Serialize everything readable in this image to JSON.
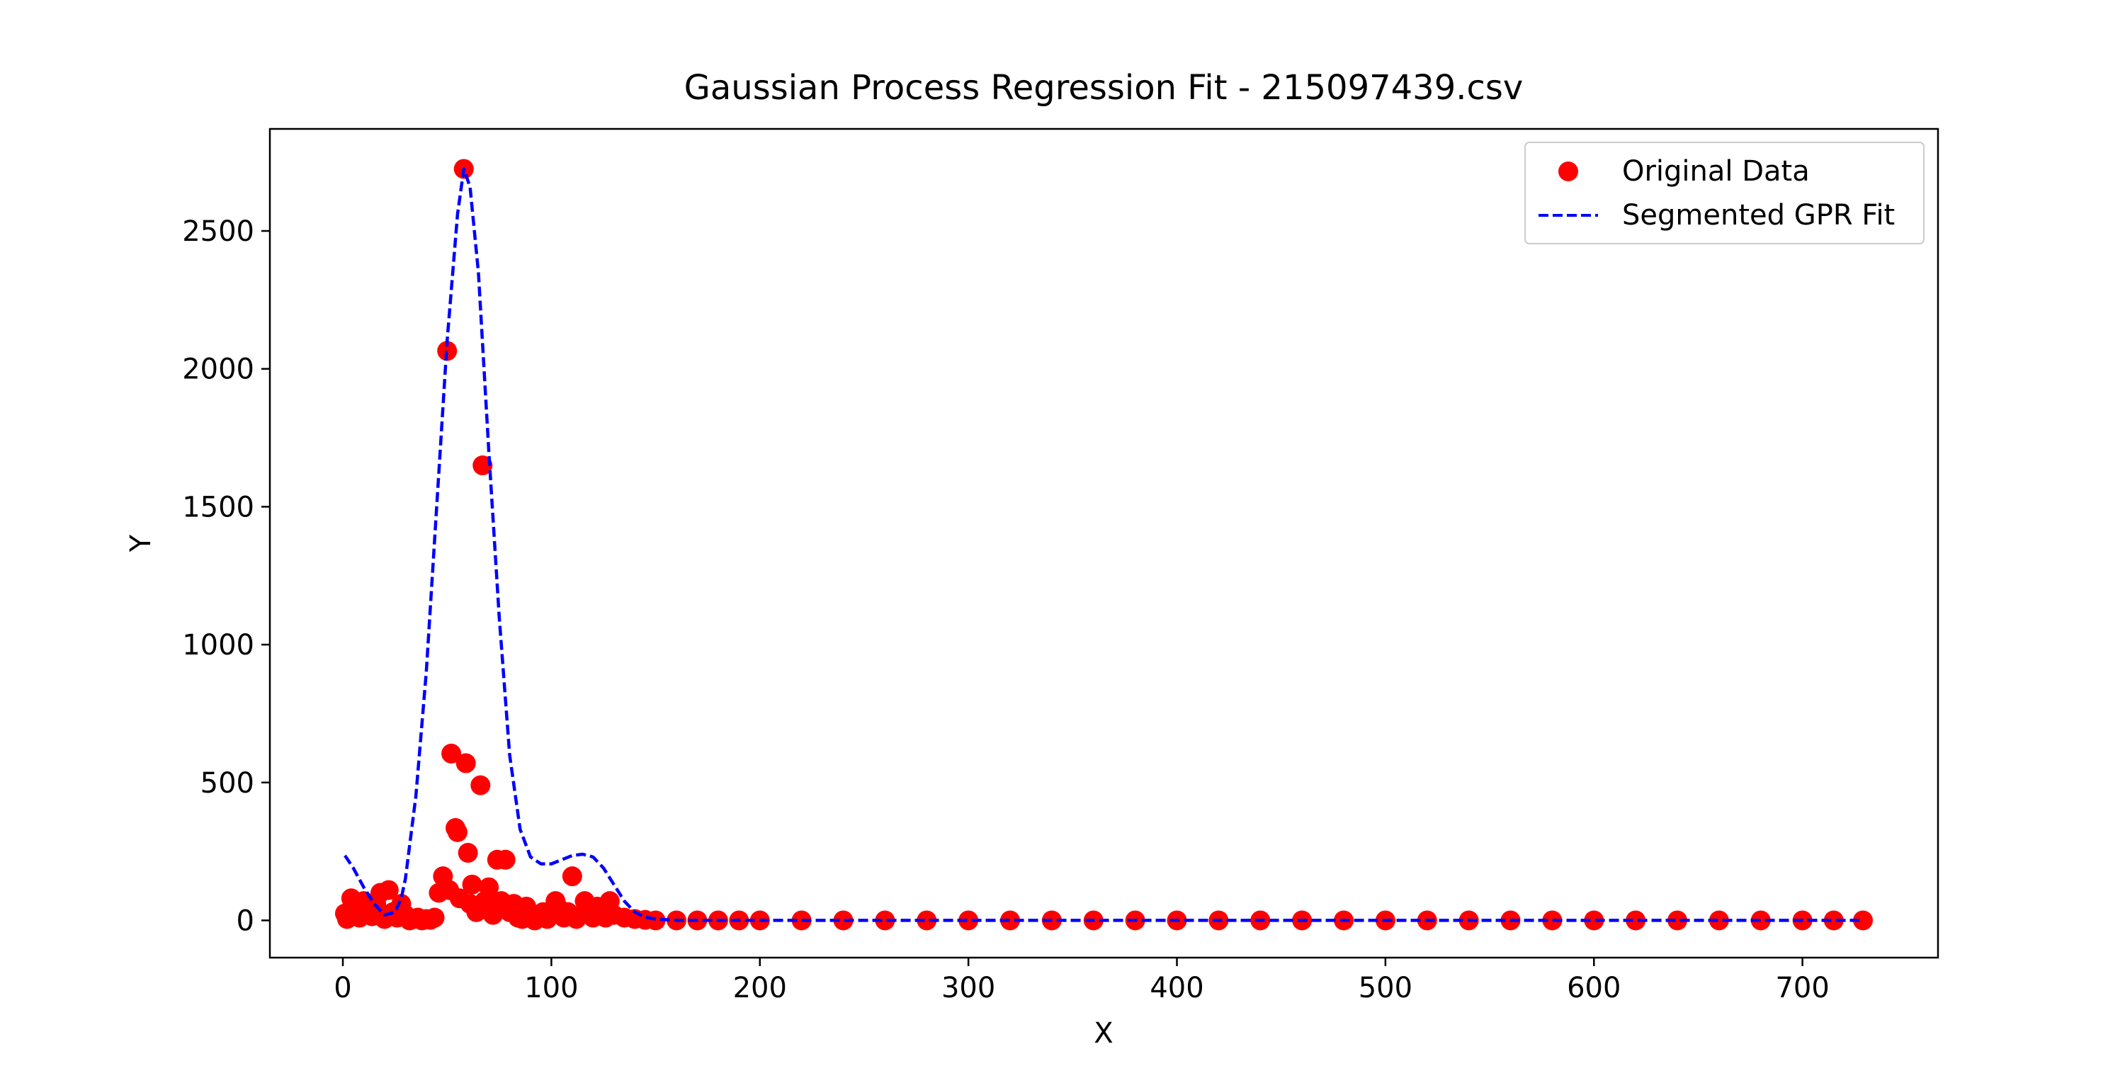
{
  "chart_data": {
    "type": "scatter",
    "title": "Gaussian Process Regression Fit - 215097439.csv",
    "xlabel": "X",
    "ylabel": "Y",
    "xlim": [
      -35,
      765
    ],
    "ylim": [
      -135,
      2870
    ],
    "xticks": [
      0,
      100,
      200,
      300,
      400,
      500,
      600,
      700
    ],
    "yticks": [
      0,
      500,
      1000,
      1500,
      2000,
      2500
    ],
    "grid": false,
    "legend": {
      "placement": "top-right",
      "entries": [
        "Original Data",
        "Segmented GPR Fit"
      ]
    },
    "colors": {
      "scatter": "#ff0000",
      "fit": "#0000ff",
      "axes": "#000000"
    },
    "series": [
      {
        "name": "Original Data",
        "kind": "scatter",
        "points": [
          [
            1,
            25
          ],
          [
            2,
            5
          ],
          [
            4,
            80
          ],
          [
            6,
            30
          ],
          [
            8,
            10
          ],
          [
            10,
            70
          ],
          [
            12,
            40
          ],
          [
            14,
            15
          ],
          [
            16,
            60
          ],
          [
            18,
            100
          ],
          [
            20,
            5
          ],
          [
            22,
            110
          ],
          [
            24,
            30
          ],
          [
            26,
            10
          ],
          [
            28,
            60
          ],
          [
            30,
            20
          ],
          [
            32,
            0
          ],
          [
            34,
            5
          ],
          [
            36,
            10
          ],
          [
            38,
            0
          ],
          [
            40,
            5
          ],
          [
            42,
            2
          ],
          [
            44,
            10
          ],
          [
            46,
            100
          ],
          [
            48,
            160
          ],
          [
            50,
            2065
          ],
          [
            51,
            110
          ],
          [
            52,
            605
          ],
          [
            54,
            335
          ],
          [
            55,
            320
          ],
          [
            56,
            80
          ],
          [
            58,
            2725
          ],
          [
            59,
            570
          ],
          [
            60,
            245
          ],
          [
            61,
            60
          ],
          [
            62,
            130
          ],
          [
            64,
            30
          ],
          [
            66,
            490
          ],
          [
            67,
            1650
          ],
          [
            68,
            70
          ],
          [
            70,
            120
          ],
          [
            72,
            20
          ],
          [
            74,
            220
          ],
          [
            76,
            70
          ],
          [
            78,
            220
          ],
          [
            80,
            30
          ],
          [
            82,
            60
          ],
          [
            84,
            10
          ],
          [
            86,
            5
          ],
          [
            88,
            50
          ],
          [
            90,
            20
          ],
          [
            92,
            0
          ],
          [
            94,
            10
          ],
          [
            96,
            30
          ],
          [
            98,
            5
          ],
          [
            100,
            20
          ],
          [
            102,
            70
          ],
          [
            104,
            40
          ],
          [
            106,
            10
          ],
          [
            108,
            30
          ],
          [
            110,
            160
          ],
          [
            112,
            5
          ],
          [
            114,
            20
          ],
          [
            116,
            70
          ],
          [
            118,
            30
          ],
          [
            120,
            10
          ],
          [
            122,
            50
          ],
          [
            124,
            30
          ],
          [
            126,
            10
          ],
          [
            128,
            70
          ],
          [
            130,
            20
          ],
          [
            135,
            10
          ],
          [
            140,
            5
          ],
          [
            145,
            2
          ],
          [
            150,
            0
          ],
          [
            160,
            0
          ],
          [
            170,
            0
          ],
          [
            180,
            0
          ],
          [
            190,
            0
          ],
          [
            200,
            0
          ],
          [
            220,
            0
          ],
          [
            240,
            0
          ],
          [
            260,
            0
          ],
          [
            280,
            0
          ],
          [
            300,
            0
          ],
          [
            320,
            0
          ],
          [
            340,
            0
          ],
          [
            360,
            0
          ],
          [
            380,
            0
          ],
          [
            400,
            0
          ],
          [
            420,
            0
          ],
          [
            440,
            0
          ],
          [
            460,
            0
          ],
          [
            480,
            0
          ],
          [
            500,
            0
          ],
          [
            520,
            0
          ],
          [
            540,
            0
          ],
          [
            560,
            0
          ],
          [
            580,
            0
          ],
          [
            600,
            0
          ],
          [
            620,
            0
          ],
          [
            640,
            0
          ],
          [
            660,
            0
          ],
          [
            680,
            0
          ],
          [
            700,
            0
          ],
          [
            715,
            0
          ],
          [
            729,
            0
          ]
        ]
      },
      {
        "name": "Segmented GPR Fit",
        "kind": "line",
        "style": "dashed",
        "points": [
          [
            1,
            235
          ],
          [
            5,
            190
          ],
          [
            10,
            120
          ],
          [
            15,
            60
          ],
          [
            20,
            20
          ],
          [
            25,
            30
          ],
          [
            28,
            80
          ],
          [
            30,
            150
          ],
          [
            35,
            450
          ],
          [
            40,
            900
          ],
          [
            45,
            1500
          ],
          [
            50,
            2100
          ],
          [
            55,
            2560
          ],
          [
            58,
            2725
          ],
          [
            61,
            2660
          ],
          [
            65,
            2350
          ],
          [
            70,
            1700
          ],
          [
            75,
            1100
          ],
          [
            80,
            600
          ],
          [
            85,
            330
          ],
          [
            90,
            230
          ],
          [
            95,
            205
          ],
          [
            100,
            205
          ],
          [
            105,
            220
          ],
          [
            110,
            235
          ],
          [
            115,
            240
          ],
          [
            120,
            230
          ],
          [
            125,
            190
          ],
          [
            130,
            130
          ],
          [
            135,
            70
          ],
          [
            140,
            30
          ],
          [
            145,
            12
          ],
          [
            150,
            5
          ],
          [
            160,
            0
          ],
          [
            200,
            0
          ],
          [
            300,
            0
          ],
          [
            400,
            0
          ],
          [
            500,
            0
          ],
          [
            600,
            0
          ],
          [
            700,
            0
          ],
          [
            729,
            0
          ]
        ]
      }
    ]
  }
}
